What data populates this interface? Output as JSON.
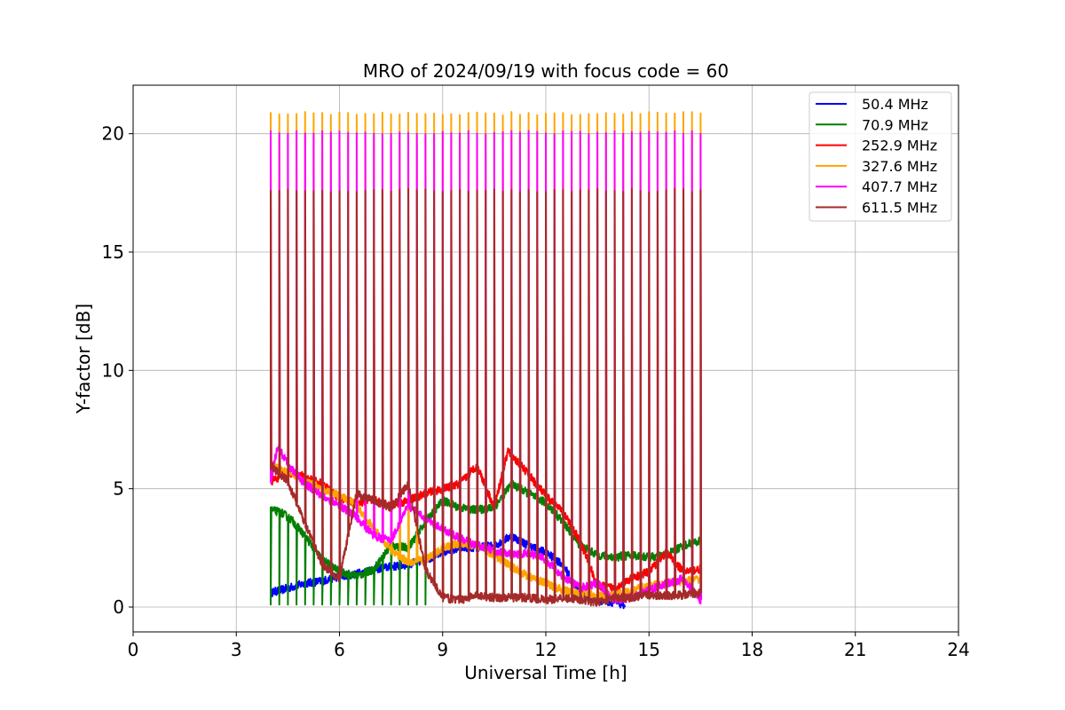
{
  "chart_data": {
    "type": "line",
    "title": "MRO of 2024/09/19 with focus code = 60",
    "xlabel": "Universal Time [h]",
    "ylabel": "Y-factor [dB]",
    "xlim": [
      0,
      24
    ],
    "ylim": [
      -1.05,
      22.05
    ],
    "xticks": [
      0,
      3,
      6,
      9,
      12,
      15,
      18,
      21,
      24
    ],
    "yticks": [
      0,
      5,
      10,
      15,
      20
    ],
    "grid": true,
    "legend_position": "upper right",
    "series": [
      {
        "name": "  50.4 MHz",
        "color": "#0000ff",
        "x": [
          4.0,
          4.5,
          5.0,
          5.5,
          6.0,
          6.5,
          7.0,
          7.5,
          8.0,
          8.5,
          9.0,
          9.5,
          10.0,
          10.5,
          11.0,
          11.5,
          12.0,
          12.5,
          13.0,
          13.5,
          14.0,
          14.3
        ],
        "y": [
          0.6,
          0.8,
          1.0,
          1.1,
          1.3,
          1.4,
          1.6,
          1.7,
          1.8,
          2.0,
          2.3,
          2.5,
          2.5,
          2.6,
          3.0,
          2.6,
          2.3,
          1.8,
          0.5,
          0.3,
          0.2,
          0.1
        ]
      },
      {
        "name": "  70.9 MHz",
        "color": "#008000",
        "x": [
          4.0,
          4.3,
          4.6,
          5.0,
          5.5,
          6.0,
          6.5,
          7.0,
          7.5,
          8.0,
          8.5,
          9.0,
          9.5,
          10.0,
          10.5,
          11.0,
          11.5,
          12.0,
          12.5,
          13.0,
          13.5,
          14.0,
          14.5,
          15.0,
          15.5,
          16.0,
          16.5
        ],
        "y": [
          4.1,
          4.0,
          3.7,
          3.0,
          2.0,
          1.5,
          1.3,
          1.6,
          2.6,
          2.5,
          3.6,
          4.5,
          4.2,
          4.1,
          4.2,
          5.2,
          4.8,
          4.4,
          3.6,
          2.6,
          2.2,
          2.1,
          2.2,
          2.1,
          2.2,
          2.6,
          2.8
        ],
        "pulse_end": 8.7,
        "pulse_min": 0.1
      },
      {
        "name": "252.9 MHz",
        "color": "#ff0000",
        "x": [
          4.0,
          4.5,
          5.0,
          5.5,
          6.0,
          6.5,
          7.0,
          7.5,
          8.0,
          8.5,
          9.0,
          9.5,
          10.0,
          10.5,
          10.9,
          11.5,
          12.0,
          12.5,
          13.0,
          13.5,
          14.0,
          14.5,
          15.0,
          15.5,
          16.0,
          16.5
        ],
        "y": [
          5.3,
          5.7,
          5.5,
          5.2,
          4.6,
          4.4,
          4.5,
          4.3,
          4.5,
          4.8,
          5.0,
          5.2,
          6.0,
          4.2,
          6.6,
          5.6,
          4.7,
          4.0,
          2.8,
          0.9,
          0.8,
          1.2,
          1.5,
          2.3,
          1.5,
          1.6
        ]
      },
      {
        "name": "327.6 MHz",
        "color": "#ffa500",
        "x": [
          4.0,
          4.5,
          5.0,
          5.5,
          6.0,
          6.5,
          7.0,
          7.5,
          8.0,
          8.5,
          9.0,
          9.5,
          10.0,
          10.5,
          11.0,
          11.5,
          12.0,
          12.5,
          13.0,
          13.5,
          14.0,
          14.5,
          15.0,
          15.5,
          16.0,
          16.5
        ],
        "y": [
          6.0,
          5.7,
          5.3,
          5.0,
          4.7,
          4.3,
          3.3,
          2.4,
          1.9,
          2.0,
          2.5,
          2.7,
          2.6,
          2.2,
          1.7,
          1.3,
          1.0,
          0.7,
          0.6,
          0.5,
          0.5,
          0.7,
          0.9,
          1.0,
          1.1,
          1.2
        ],
        "peak": 20.85
      },
      {
        "name": "407.7 MHz",
        "color": "#ff00ff",
        "x": [
          4.0,
          4.2,
          4.5,
          5.0,
          5.5,
          6.0,
          6.5,
          7.0,
          7.5,
          8.0,
          8.5,
          9.0,
          9.5,
          10.0,
          10.5,
          11.0,
          11.5,
          12.0,
          12.5,
          13.0,
          13.5,
          14.0,
          14.5,
          15.0,
          15.5,
          16.0,
          16.5
        ],
        "y": [
          5.3,
          6.8,
          6.0,
          5.2,
          4.7,
          4.3,
          3.8,
          3.0,
          2.8,
          4.3,
          3.7,
          3.3,
          2.9,
          2.6,
          2.4,
          2.2,
          2.3,
          2.0,
          1.3,
          0.8,
          1.0,
          0.3,
          0.4,
          0.7,
          1.0,
          1.2,
          0.3
        ],
        "peak": 20.05
      },
      {
        "name": "611.5 MHz",
        "color": "#a52a2a",
        "x": [
          4.0,
          4.5,
          5.0,
          5.5,
          6.0,
          6.5,
          7.0,
          7.5,
          8.0,
          8.5,
          9.0,
          9.5,
          10.0,
          10.5,
          11.0,
          11.5,
          12.0,
          12.5,
          13.0,
          13.5,
          14.0,
          14.5,
          15.0,
          15.5,
          16.0,
          16.5
        ],
        "y": [
          6.0,
          5.3,
          3.5,
          1.8,
          1.2,
          4.8,
          4.5,
          4.2,
          5.2,
          1.6,
          0.4,
          0.3,
          0.5,
          0.4,
          0.4,
          0.4,
          0.3,
          0.4,
          0.3,
          0.2,
          0.4,
          0.4,
          0.5,
          0.5,
          0.5,
          0.6
        ],
        "peak": 17.6
      }
    ],
    "calibration_pulses": {
      "start": 4.0,
      "end": 16.5,
      "period": 0.25
    }
  }
}
